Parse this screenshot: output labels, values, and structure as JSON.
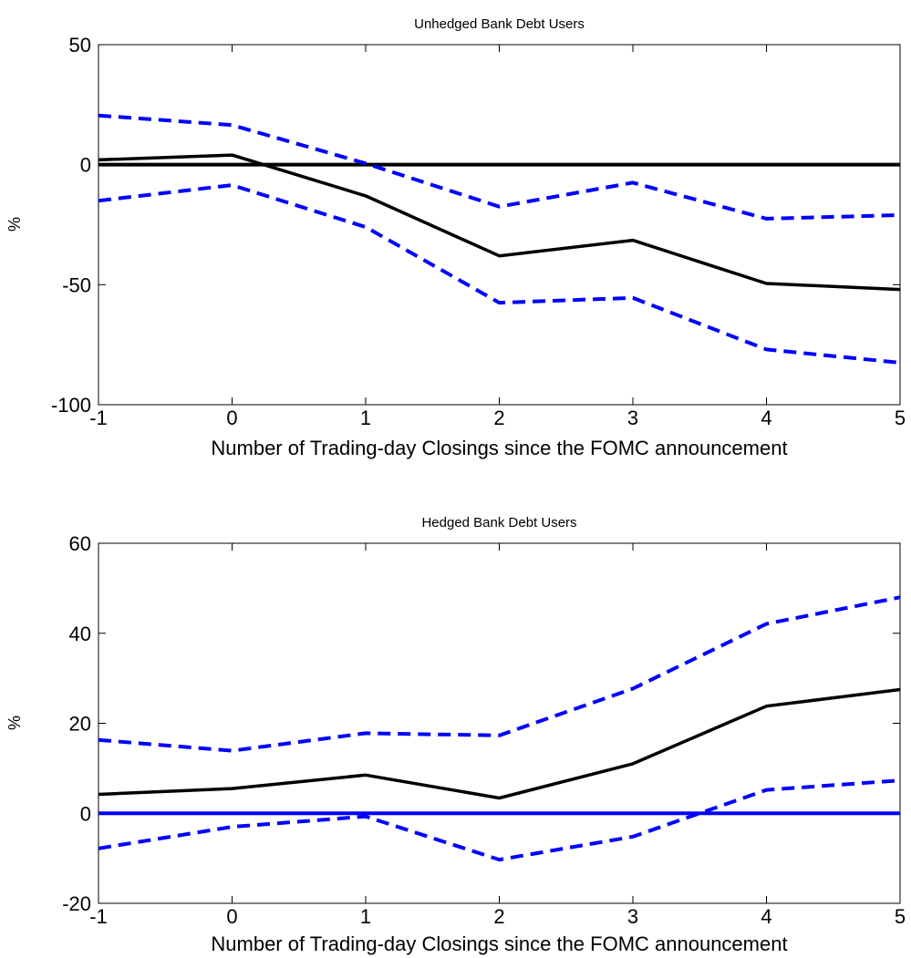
{
  "chart_data": [
    {
      "type": "line",
      "title": "Unhedged Bank Debt Users",
      "xlabel": "Number of Trading-day Closings since the FOMC announcement",
      "ylabel": "%",
      "xlim": [
        -1,
        5
      ],
      "ylim": [
        -100,
        50
      ],
      "xticks": [
        "-1",
        "0",
        "1",
        "2",
        "3",
        "4",
        "5"
      ],
      "yticks": [
        "50",
        "0",
        "-50",
        "-100"
      ],
      "grid": false,
      "x": [
        -1,
        0,
        1,
        2,
        3,
        4,
        5
      ],
      "series": [
        {
          "role": "estimate",
          "style": "solid",
          "color": "#000000",
          "values": [
            2,
            4,
            -13,
            -38,
            -31.5,
            -49.5,
            -52
          ]
        },
        {
          "role": "upper-band",
          "style": "dashed",
          "color": "#0000ff",
          "values": [
            20.5,
            16.5,
            0.5,
            -17.5,
            -7.5,
            -22.5,
            -21
          ]
        },
        {
          "role": "lower-band",
          "style": "dashed",
          "color": "#0000ff",
          "values": [
            -15,
            -8.5,
            -26,
            -57.5,
            -55.5,
            -77,
            -82.5
          ]
        }
      ],
      "reference_line": {
        "y": 0,
        "color": "#000000"
      }
    },
    {
      "type": "line",
      "title": "Hedged Bank Debt Users",
      "xlabel": "Number of Trading-day Closings since the FOMC announcement",
      "ylabel": "%",
      "xlim": [
        -1,
        5
      ],
      "ylim": [
        -20,
        60
      ],
      "xticks": [
        "-1",
        "0",
        "1",
        "2",
        "3",
        "4",
        "5"
      ],
      "yticks": [
        "60",
        "40",
        "20",
        "0",
        "-20"
      ],
      "grid": false,
      "x": [
        -1,
        0,
        1,
        2,
        3,
        4,
        5
      ],
      "series": [
        {
          "role": "estimate",
          "style": "solid",
          "color": "#000000",
          "values": [
            4.2,
            5.5,
            8.5,
            3.4,
            11,
            23.8,
            27.5
          ]
        },
        {
          "role": "upper-band",
          "style": "dashed",
          "color": "#0000ff",
          "values": [
            16.3,
            13.9,
            17.8,
            17.3,
            27.7,
            42.1,
            48
          ]
        },
        {
          "role": "lower-band",
          "style": "dashed",
          "color": "#0000ff",
          "values": [
            -7.8,
            -3,
            -0.7,
            -10.3,
            -5.2,
            5.2,
            7.3
          ]
        }
      ],
      "reference_line": {
        "y": 0,
        "color": "#0000ff"
      }
    }
  ]
}
